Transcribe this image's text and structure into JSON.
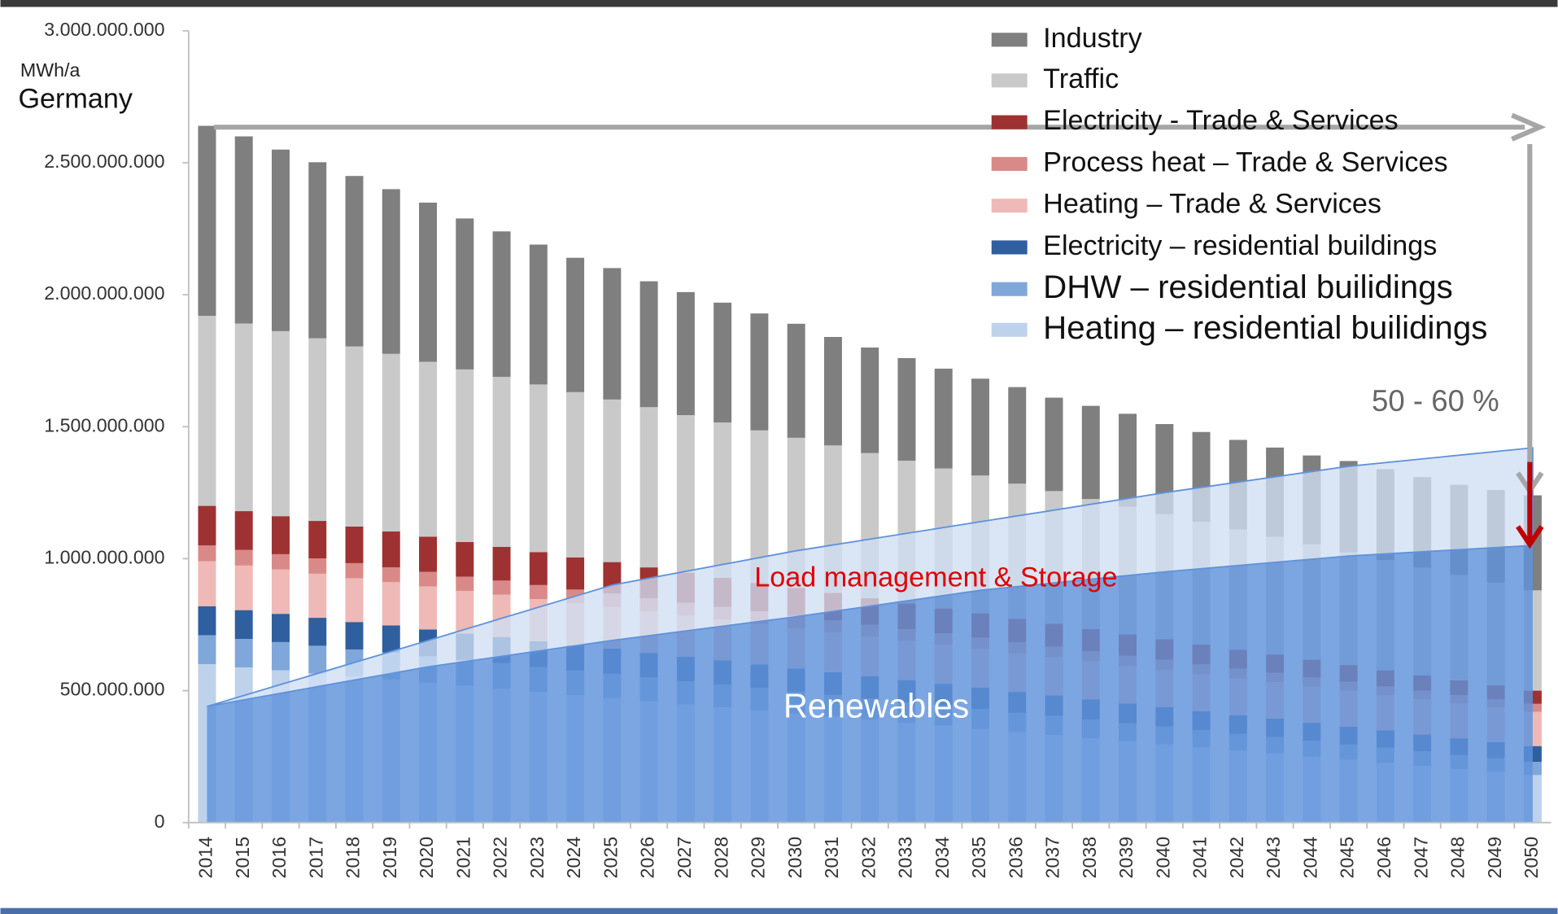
{
  "chart_data": {
    "type": "bar",
    "stacked": true,
    "y_unit_label": "MWh/a",
    "region_label": "Germany",
    "categories": [
      "2014",
      "2015",
      "2016",
      "2017",
      "2018",
      "2019",
      "2020",
      "2021",
      "2022",
      "2023",
      "2024",
      "2025",
      "2026",
      "2027",
      "2028",
      "2029",
      "2030",
      "2031",
      "2032",
      "2033",
      "2034",
      "2035",
      "2036",
      "2037",
      "2038",
      "2039",
      "2040",
      "2041",
      "2042",
      "2043",
      "2044",
      "2045",
      "2046",
      "2047",
      "2048",
      "2049",
      "2050"
    ],
    "ylim": [
      0,
      3000000000
    ],
    "yticks": [
      {
        "value": 0,
        "label": "0"
      },
      {
        "value": 500000000,
        "label": "500.000.000"
      },
      {
        "value": 1000000000,
        "label": "1.000.000.000"
      },
      {
        "value": 1500000000,
        "label": "1.500.000.000"
      },
      {
        "value": 2000000000,
        "label": "2.000.000.000"
      },
      {
        "value": 2500000000,
        "label": "2.500.000.000"
      },
      {
        "value": 3000000000,
        "label": "3.000.000.000"
      }
    ],
    "grid": false,
    "legend": "top-right",
    "series": [
      {
        "name": "Industry",
        "color": "#7f7f7f",
        "values": [
          720000000,
          709000000,
          688000000,
          667000000,
          646000000,
          624000000,
          603000000,
          572000000,
          551000000,
          530000000,
          509000000,
          498000000,
          477000000,
          466000000,
          454000000,
          443000000,
          432000000,
          411000000,
          400000000,
          389000000,
          378000000,
          367000000,
          366000000,
          354000000,
          353000000,
          352000000,
          341000000,
          340000000,
          339000000,
          338000000,
          337000000,
          346000000,
          344000000,
          343000000,
          342000000,
          351000000,
          360000000
        ]
      },
      {
        "name": "Traffic",
        "color": "#c9c9c9",
        "values": [
          720000000,
          711000000,
          701000000,
          692000000,
          682000000,
          673000000,
          663000000,
          654000000,
          644000000,
          635000000,
          626000000,
          616000000,
          607000000,
          597000000,
          588000000,
          578000000,
          569000000,
          559000000,
          550000000,
          541000000,
          531000000,
          522000000,
          512000000,
          503000000,
          493000000,
          484000000,
          474000000,
          465000000,
          456000000,
          446000000,
          437000000,
          427000000,
          418000000,
          408000000,
          399000000,
          389000000,
          380000000
        ]
      },
      {
        "name": "Electricity - Trade & Services",
        "color": "#9e3232",
        "values": [
          150000000,
          147000000,
          144000000,
          142000000,
          139000000,
          136000000,
          133000000,
          131000000,
          128000000,
          125000000,
          122000000,
          119000000,
          117000000,
          114000000,
          111000000,
          108000000,
          106000000,
          103000000,
          100000000,
          97000000,
          94000000,
          92000000,
          89000000,
          86000000,
          83000000,
          81000000,
          78000000,
          75000000,
          72000000,
          69000000,
          67000000,
          64000000,
          61000000,
          58000000,
          56000000,
          53000000,
          50000000
        ]
      },
      {
        "name": "Process heat – Trade & Services",
        "color": "#d98a88",
        "values": [
          60000000,
          59000000,
          58000000,
          58000000,
          57000000,
          56000000,
          55000000,
          54000000,
          53000000,
          53000000,
          52000000,
          51000000,
          50000000,
          49000000,
          48000000,
          48000000,
          47000000,
          46000000,
          45000000,
          44000000,
          43000000,
          43000000,
          42000000,
          41000000,
          40000000,
          39000000,
          38000000,
          38000000,
          37000000,
          36000000,
          35000000,
          34000000,
          33000000,
          33000000,
          32000000,
          31000000,
          30000000
        ]
      },
      {
        "name": "Heating – Trade & Services",
        "color": "#eeb9b6",
        "values": [
          170000000,
          169000000,
          168000000,
          167000000,
          166000000,
          164000000,
          163000000,
          162000000,
          161000000,
          160000000,
          159000000,
          158000000,
          157000000,
          156000000,
          154000000,
          153000000,
          152000000,
          151000000,
          150000000,
          149000000,
          148000000,
          147000000,
          146000000,
          144000000,
          143000000,
          142000000,
          141000000,
          140000000,
          139000000,
          138000000,
          137000000,
          136000000,
          134000000,
          133000000,
          132000000,
          131000000,
          130000000
        ]
      },
      {
        "name": "Electricity – residential buildings",
        "color": "#2f5f9e",
        "values": [
          110000000,
          109000000,
          107000000,
          106000000,
          104000000,
          103000000,
          102000000,
          100000000,
          99000000,
          97000000,
          96000000,
          95000000,
          93000000,
          92000000,
          91000000,
          89000000,
          88000000,
          86000000,
          85000000,
          84000000,
          82000000,
          81000000,
          79000000,
          78000000,
          77000000,
          75000000,
          74000000,
          72000000,
          71000000,
          70000000,
          68000000,
          67000000,
          65000000,
          64000000,
          63000000,
          61000000,
          60000000
        ]
      },
      {
        "name": "DHW – residential builidings",
        "color": "#80a7d9",
        "values": [
          110000000,
          108000000,
          107000000,
          105000000,
          103000000,
          102000000,
          100000000,
          98000000,
          97000000,
          95000000,
          93000000,
          92000000,
          90000000,
          88000000,
          87000000,
          85000000,
          83000000,
          82000000,
          80000000,
          78000000,
          77000000,
          75000000,
          73000000,
          72000000,
          70000000,
          68000000,
          67000000,
          65000000,
          63000000,
          62000000,
          60000000,
          58000000,
          57000000,
          55000000,
          53000000,
          52000000,
          50000000
        ]
      },
      {
        "name": "Heating – residential builidings",
        "color": "#bed2ec",
        "values": [
          600000000,
          588000000,
          577000000,
          565000000,
          553000000,
          542000000,
          530000000,
          518000000,
          507000000,
          495000000,
          483000000,
          472000000,
          460000000,
          448000000,
          437000000,
          425000000,
          413000000,
          402000000,
          390000000,
          378000000,
          367000000,
          355000000,
          343000000,
          332000000,
          320000000,
          308000000,
          297000000,
          285000000,
          273000000,
          262000000,
          250000000,
          238000000,
          227000000,
          215000000,
          203000000,
          192000000,
          180000000
        ]
      }
    ],
    "areas": [
      {
        "name": "Renewables",
        "color": "#5f92db",
        "x": [
          2014,
          2020,
          2025,
          2030,
          2035,
          2040,
          2045,
          2050
        ],
        "values": [
          440000000,
          590000000,
          690000000,
          780000000,
          880000000,
          950000000,
          1010000000,
          1050000000
        ]
      },
      {
        "name": "Load management & Storage",
        "color": "#cfdff3",
        "x": [
          2014,
          2020,
          2025,
          2030,
          2035,
          2040,
          2045,
          2050
        ],
        "values": [
          0,
          100000000,
          210000000,
          250000000,
          260000000,
          300000000,
          340000000,
          370000000
        ]
      }
    ],
    "annotation": "50 - 60 %"
  }
}
